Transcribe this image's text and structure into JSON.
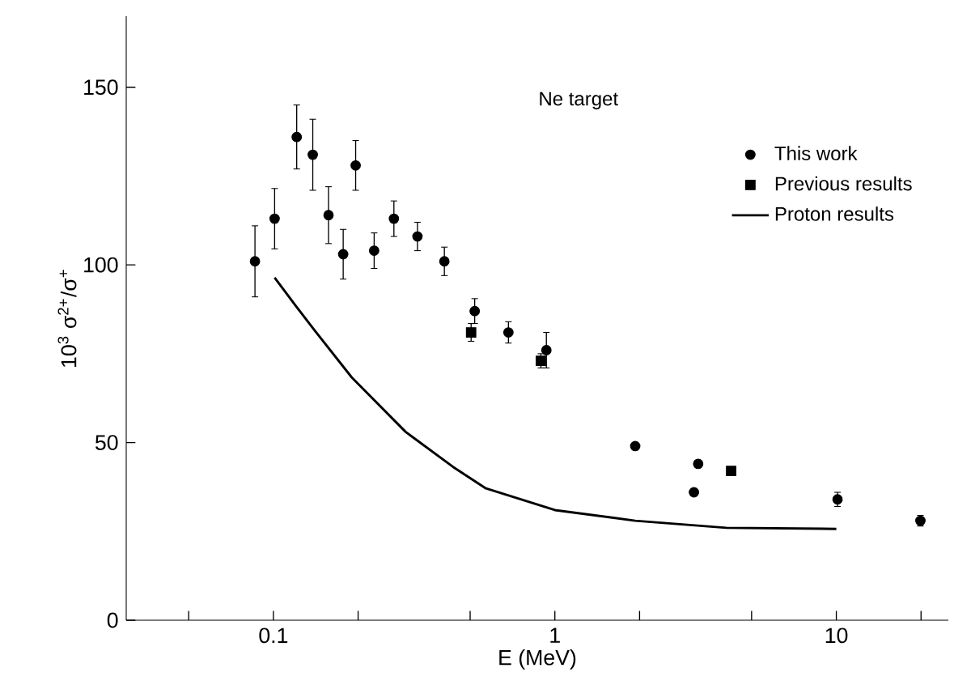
{
  "chart_data": {
    "type": "scatter",
    "xlabel": "E (MeV)",
    "ylabel": "10$^{3}$ σ$^{2+}$/σ$^{+}$",
    "annotations": [
      "Ne target"
    ],
    "log": "x",
    "xlim": [
      0.03,
      25
    ],
    "ylim": [
      0,
      170
    ],
    "xticks": [
      {
        "value": 0.05,
        "label": null
      },
      {
        "value": 0.1,
        "label": "0.1"
      },
      {
        "value": 0.2,
        "label": null
      },
      {
        "value": 0.5,
        "label": null
      },
      1,
      {
        "value": 2,
        "label": null
      },
      {
        "value": 5,
        "label": null
      },
      10,
      {
        "value": 20,
        "label": null
      }
    ],
    "yticks": [
      0,
      50,
      100,
      150
    ],
    "grid": false,
    "legend": "top right",
    "series": [
      {
        "name": "This work",
        "marker": "circle",
        "color": "#000000",
        "x": [
          0.086,
          0.101,
          0.121,
          0.138,
          0.157,
          0.177,
          0.196,
          0.228,
          0.268,
          0.325,
          0.405,
          0.519,
          0.684,
          0.933,
          1.93,
          3.12,
          3.23,
          10.1,
          19.9
        ],
        "values": [
          101,
          113,
          136,
          131,
          114,
          103,
          128,
          104,
          113,
          108,
          101,
          87,
          81,
          76,
          49,
          36,
          44,
          34,
          28
        ],
        "errors": [
          10,
          8.5,
          9,
          10,
          8,
          7,
          7,
          5,
          5,
          4,
          4,
          3.5,
          3,
          5,
          null,
          null,
          null,
          2,
          1.5
        ]
      },
      {
        "name": "Previous results",
        "marker": "square",
        "color": "#000000",
        "x": [
          0.504,
          0.892,
          4.23
        ],
        "values": [
          81,
          73,
          42
        ],
        "errors": [
          2.5,
          2,
          null
        ]
      },
      {
        "name": "Proton results",
        "type": "line",
        "marker": "none",
        "line_style": "solid",
        "color": "#000000",
        "x": [
          0.101,
          0.12,
          0.14,
          0.19,
          0.295,
          0.434,
          0.569,
          1.0,
          1.93,
          4.07,
          10.0
        ],
        "values": [
          96.4,
          88.5,
          81.6,
          68.3,
          53,
          43.2,
          37.1,
          31,
          28,
          26,
          25.7
        ]
      }
    ]
  }
}
